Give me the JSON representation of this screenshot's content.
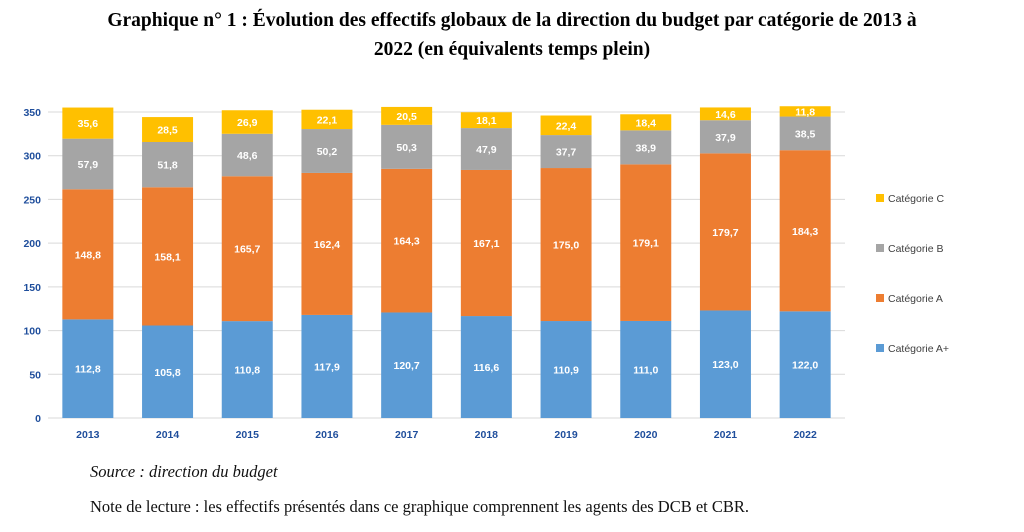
{
  "title": {
    "line1": "Graphique n° 1 : Évolution des effectifs globaux de la direction du budget par catégorie de 2013 à",
    "line2": "2022 (en équivalents temps plein)"
  },
  "source": "Source : direction du budget",
  "note": "Note de lecture : les effectifs présentés dans ce graphique comprennent les agents des DCB et CBR.",
  "colors": {
    "categorie_a_plus": "#5B9BD5",
    "categorie_a": "#ED7D31",
    "categorie_b": "#A5A5A5",
    "categorie_c": "#FFC000"
  },
  "chart_data": {
    "type": "bar",
    "stacked": true,
    "categories": [
      "2013",
      "2014",
      "2015",
      "2016",
      "2017",
      "2018",
      "2019",
      "2020",
      "2021",
      "2022"
    ],
    "series": [
      {
        "name": "Catégorie A+",
        "color": "#5B9BD5",
        "values": [
          112.8,
          105.8,
          110.8,
          117.9,
          120.7,
          116.6,
          110.9,
          111.0,
          123.0,
          122.0
        ],
        "labels": [
          "112,8",
          "105,8",
          "110,8",
          "117,9",
          "120,7",
          "116,6",
          "110,9",
          "111,0",
          "123,0",
          "122,0"
        ]
      },
      {
        "name": "Catégorie A",
        "color": "#ED7D31",
        "values": [
          148.8,
          158.1,
          165.7,
          162.4,
          164.3,
          167.1,
          175.0,
          179.1,
          179.7,
          184.3
        ],
        "labels": [
          "148,8",
          "158,1",
          "165,7",
          "162,4",
          "164,3",
          "167,1",
          "175,0",
          "179,1",
          "179,7",
          "184,3"
        ]
      },
      {
        "name": "Catégorie B",
        "color": "#A5A5A5",
        "values": [
          57.9,
          51.8,
          48.6,
          50.2,
          50.3,
          47.9,
          37.7,
          38.9,
          37.9,
          38.5
        ],
        "labels": [
          "57,9",
          "51,8",
          "48,6",
          "50,2",
          "50,3",
          "47,9",
          "37,7",
          "38,9",
          "37,9",
          "38,5"
        ]
      },
      {
        "name": "Catégorie C",
        "color": "#FFC000",
        "values": [
          35.6,
          28.5,
          26.9,
          22.1,
          20.5,
          18.1,
          22.4,
          18.4,
          14.6,
          11.8
        ],
        "labels": [
          "35,6",
          "28,5",
          "26,9",
          "22,1",
          "20,5",
          "18,1",
          "22,4",
          "18,4",
          "14,6",
          "11,8"
        ]
      }
    ],
    "ylim": [
      0,
      350
    ],
    "yticks": [
      "0",
      "50",
      "100",
      "150",
      "200",
      "250",
      "300",
      "350"
    ],
    "grid": true,
    "legend_position": "right",
    "legend_order": [
      "Catégorie C",
      "Catégorie B",
      "Catégorie A",
      "Catégorie A+"
    ]
  }
}
